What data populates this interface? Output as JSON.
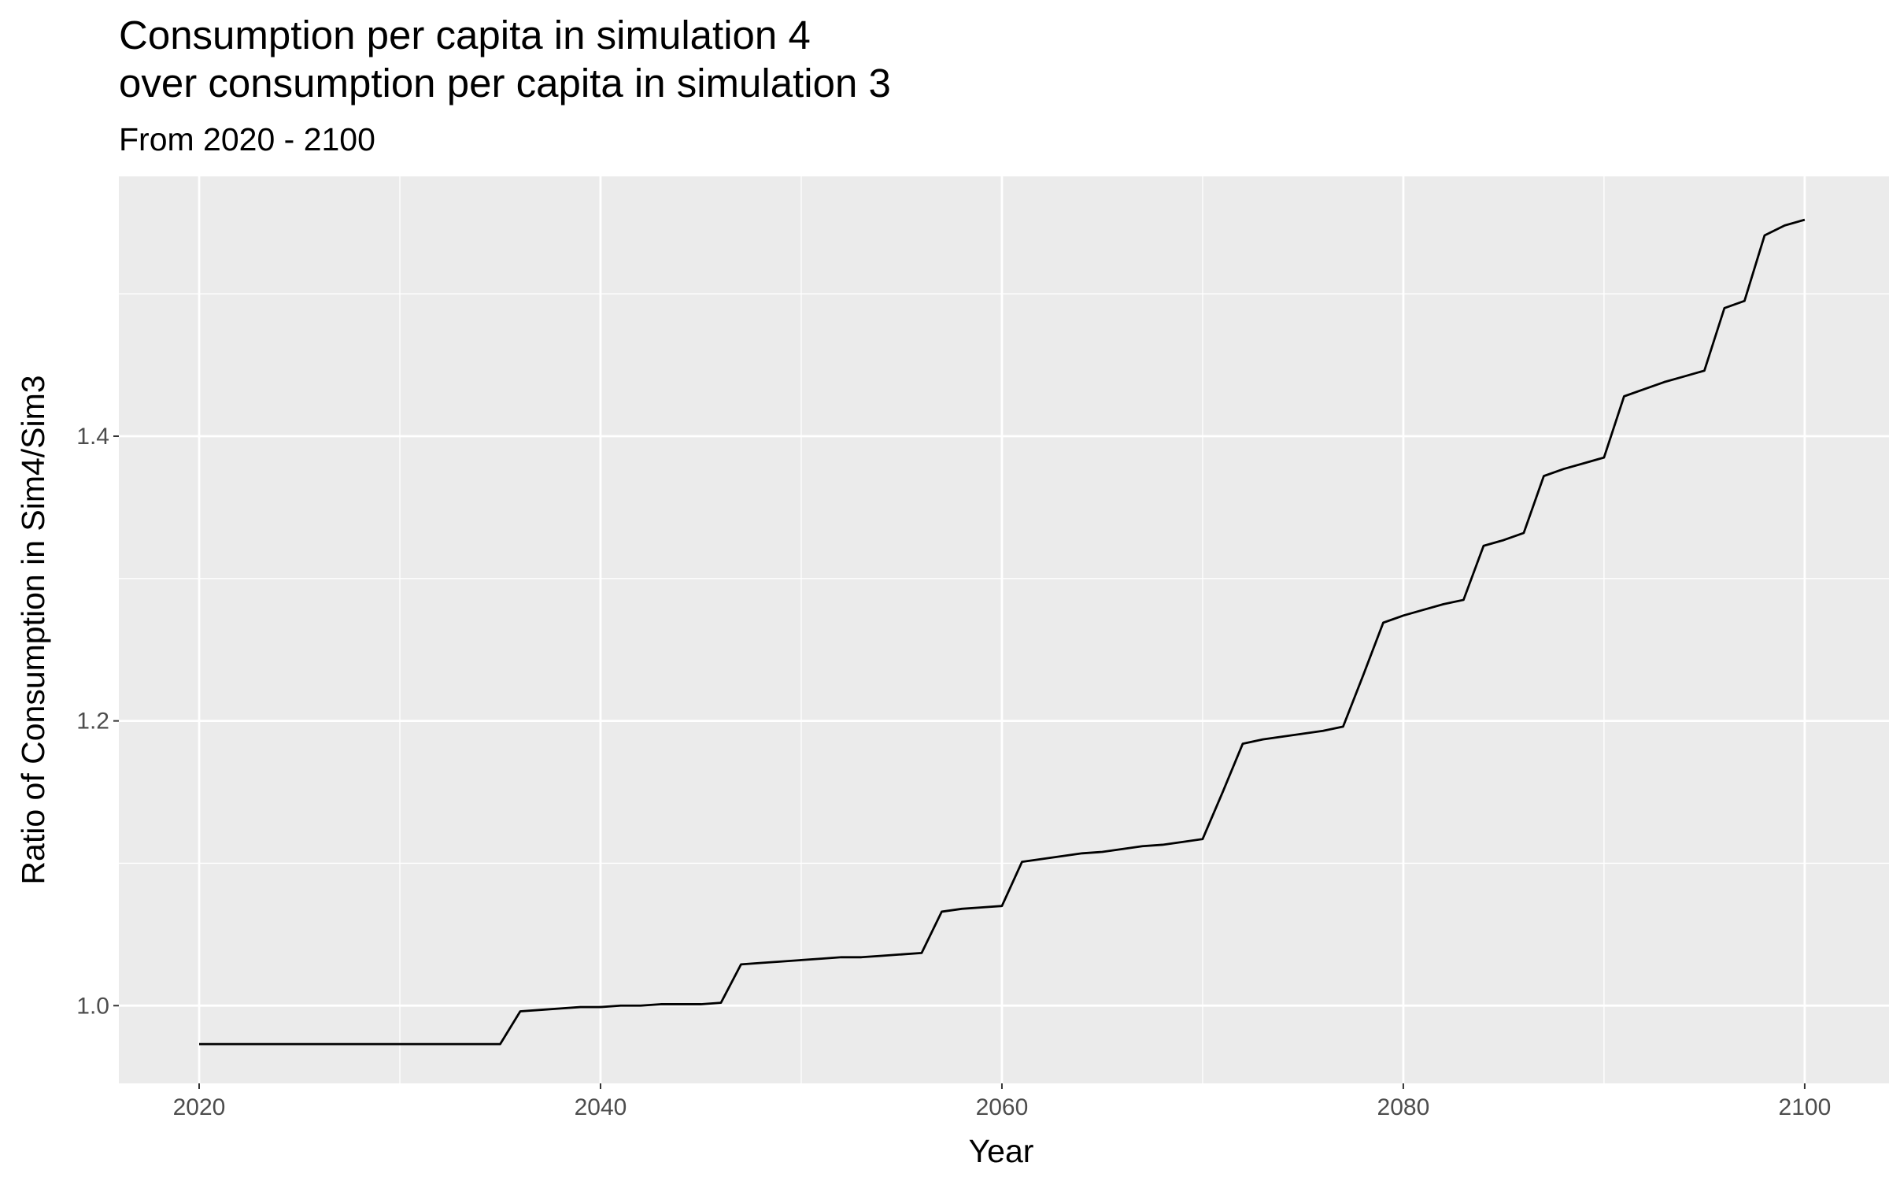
{
  "chart_data": {
    "type": "line",
    "title": [
      "Consumption per capita in simulation 4",
      "over consumption per capita in simulation 3"
    ],
    "subtitle": "From 2020 - 2100",
    "x_label": "Year",
    "y_label": "Ratio of Consumption in Sim4/Sim3",
    "color": "#000000",
    "grid": true,
    "x": [
      2020,
      2021,
      2022,
      2023,
      2024,
      2025,
      2026,
      2027,
      2028,
      2029,
      2030,
      2031,
      2032,
      2033,
      2034,
      2035,
      2036,
      2037,
      2038,
      2039,
      2040,
      2041,
      2042,
      2043,
      2044,
      2045,
      2046,
      2047,
      2048,
      2049,
      2050,
      2051,
      2052,
      2053,
      2054,
      2055,
      2056,
      2057,
      2058,
      2059,
      2060,
      2061,
      2062,
      2063,
      2064,
      2065,
      2066,
      2067,
      2068,
      2069,
      2070,
      2071,
      2072,
      2073,
      2074,
      2075,
      2076,
      2077,
      2078,
      2079,
      2080,
      2081,
      2082,
      2083,
      2084,
      2085,
      2086,
      2087,
      2088,
      2089,
      2090,
      2091,
      2092,
      2093,
      2094,
      2095,
      2096,
      2097,
      2098,
      2099,
      2100
    ],
    "values": [
      0.973,
      0.973,
      0.973,
      0.973,
      0.973,
      0.973,
      0.973,
      0.973,
      0.973,
      0.973,
      0.973,
      0.973,
      0.973,
      0.973,
      0.973,
      0.973,
      0.996,
      0.997,
      0.998,
      0.999,
      0.999,
      1.0,
      1.0,
      1.001,
      1.001,
      1.001,
      1.002,
      1.029,
      1.03,
      1.031,
      1.032,
      1.033,
      1.034,
      1.034,
      1.035,
      1.036,
      1.037,
      1.066,
      1.068,
      1.069,
      1.07,
      1.101,
      1.103,
      1.105,
      1.107,
      1.108,
      1.11,
      1.112,
      1.113,
      1.115,
      1.117,
      1.15,
      1.184,
      1.187,
      1.189,
      1.191,
      1.193,
      1.196,
      1.232,
      1.269,
      1.274,
      1.278,
      1.282,
      1.285,
      1.323,
      1.327,
      1.332,
      1.372,
      1.377,
      1.381,
      1.385,
      1.428,
      1.433,
      1.438,
      1.442,
      1.446,
      1.49,
      1.495,
      1.541,
      1.548,
      1.552
    ],
    "xlim": [
      2016,
      2104.2
    ],
    "ylim": [
      0.9454,
      1.5825
    ],
    "xticks": [
      2020,
      2040,
      2060,
      2080,
      2100
    ],
    "yticks": [
      {
        "value": 1,
        "label": "1.0"
      },
      1.2,
      1.4
    ]
  }
}
